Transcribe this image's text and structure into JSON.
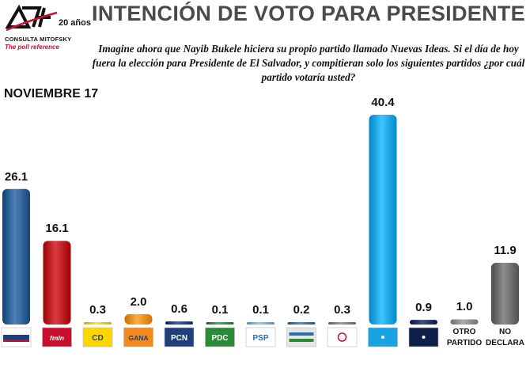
{
  "header": {
    "logo_name": "CONSULTA MITOFSKY",
    "logo_tagline": "The poll reference",
    "logo_badge": "20 años",
    "title": "INTENCIÓN DE VOTO PARA PRESIDENTE",
    "question": "Imagine ahora que Nayib Bukele hiciera su propio partido llamado Nuevas Ideas. Si el día de hoy fuera la elección para Presidente de El Salvador, y compitieran solo los siguientes partidos ¿por cuál partido votaría usted?",
    "date_label": "NOVIEMBRE 17"
  },
  "chart_data": {
    "type": "bar",
    "title": "INTENCIÓN DE VOTO PARA PRESIDENTE",
    "xlabel": "",
    "ylabel": "",
    "ylim": [
      0,
      42
    ],
    "grid": false,
    "categories": [
      {
        "logo": "ARENA",
        "logo_text": "",
        "bar_color": "#2c5d94",
        "value": 26.1
      },
      {
        "logo": "FMLN",
        "logo_text": "fmln",
        "bar_color": "#b8191f",
        "value": 16.1
      },
      {
        "logo": "CD",
        "logo_text": "CD",
        "bar_color": "#e8c400",
        "value": 0.3
      },
      {
        "logo": "GANA",
        "logo_text": "GANA",
        "bar_color": "#e98b1b",
        "value": 2.0
      },
      {
        "logo": "PCN",
        "logo_text": "PCN",
        "bar_color": "#1f3f7a",
        "value": 0.6
      },
      {
        "logo": "PDC",
        "logo_text": "PDC",
        "bar_color": "#2a8a3a",
        "value": 0.1
      },
      {
        "logo": "PSP",
        "logo_text": "PSP",
        "bar_color": "#6aaad6",
        "value": 0.1
      },
      {
        "logo": "Democracia Salvadoreña",
        "logo_text": "",
        "bar_color": "#2b6fa8",
        "value": 0.2
      },
      {
        "logo": "partido-emblem",
        "logo_text": "",
        "bar_color": "#7a7a7a",
        "value": 0.3
      },
      {
        "logo": "Nuevas Ideas",
        "logo_text": "",
        "bar_color": "#1aa3e3",
        "value": 40.4
      },
      {
        "logo": "partido-dark",
        "logo_text": "",
        "bar_color": "#1b2f5c",
        "value": 0.9
      },
      {
        "logo": "",
        "label": "OTRO PARTIDO",
        "bar_color": "#8a8a8a",
        "value": 1.0
      },
      {
        "logo": "",
        "label": "NO DECLARA",
        "bar_color": "#6a6a6a",
        "value": 11.9
      }
    ],
    "values": [
      26.1,
      16.1,
      0.3,
      2.0,
      0.6,
      0.1,
      0.1,
      0.2,
      0.3,
      40.4,
      0.9,
      1.0,
      11.9
    ],
    "value_labels": [
      "26.1",
      "16.1",
      "0.3",
      "2.0",
      "0.6",
      "0.1",
      "0.1",
      "0.2",
      "0.3",
      "40.4",
      "0.9",
      "1.0",
      "11.9"
    ]
  }
}
